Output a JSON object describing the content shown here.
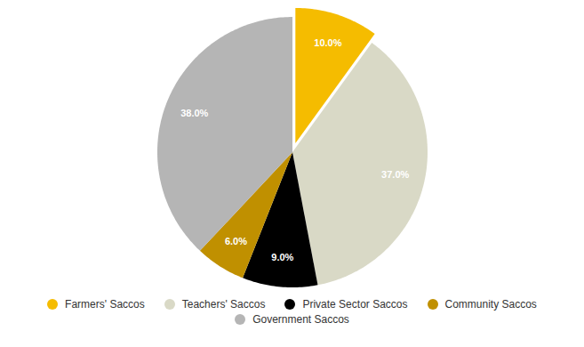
{
  "chart_data": {
    "type": "pie",
    "categories": [
      "Farmers' Saccos",
      "Teachers' Saccos",
      "Private Sector Saccos",
      "Community Saccos",
      "Government Saccos"
    ],
    "values": [
      10.0,
      37.0,
      9.0,
      6.0,
      38.0
    ],
    "value_labels": [
      "10.0%",
      "37.0%",
      "9.0%",
      "6.0%",
      "38.0%"
    ],
    "colors": [
      "#f5bc00",
      "#d9d9c6",
      "#000000",
      "#c09000",
      "#b5b5b5"
    ],
    "data_labels": true,
    "legend": "bottom"
  }
}
